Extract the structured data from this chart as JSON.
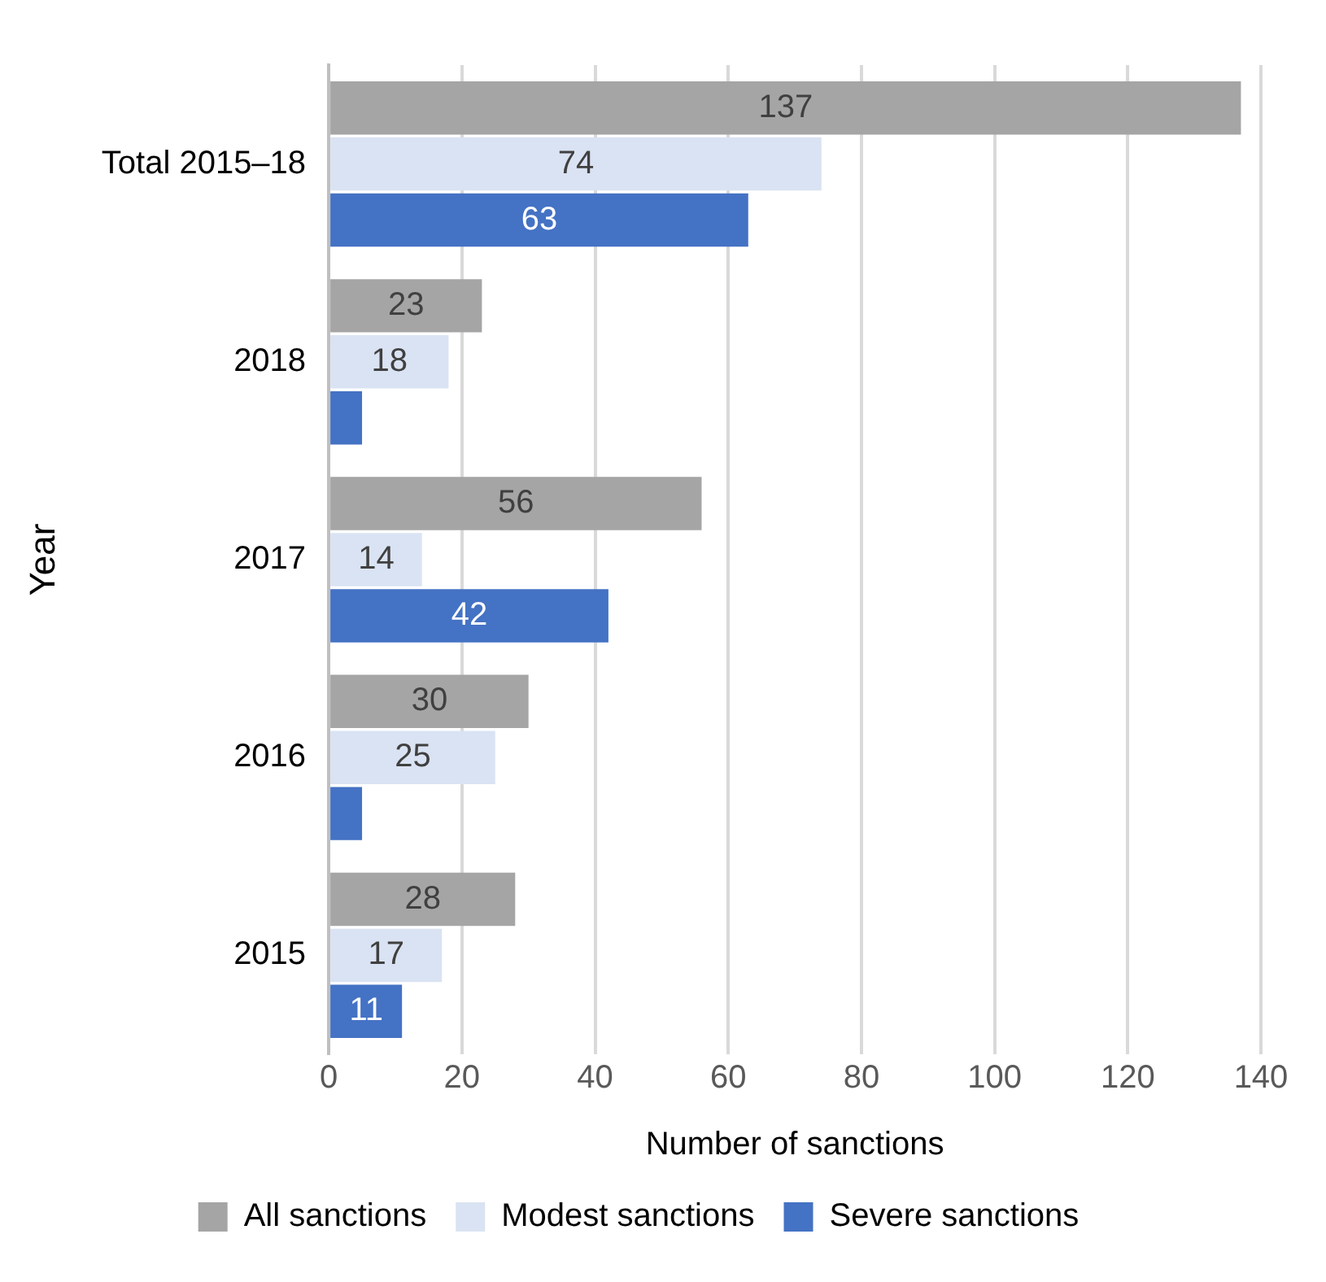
{
  "chart_data": {
    "type": "bar",
    "orientation": "horizontal",
    "xlabel": "Number of sanctions",
    "ylabel": "Year",
    "categories": [
      "Total 2015–18",
      "2018",
      "2017",
      "2016",
      "2015"
    ],
    "series": [
      {
        "name": "All sanctions",
        "color": "#a5a5a5",
        "values": [
          137,
          23,
          56,
          30,
          28
        ],
        "value_labels": [
          "137",
          "23",
          "56",
          "30",
          "28"
        ]
      },
      {
        "name": "Modest sanctions",
        "color": "#dae3f3",
        "values": [
          74,
          18,
          14,
          25,
          17
        ],
        "value_labels": [
          "74",
          "18",
          "14",
          "25",
          "17"
        ]
      },
      {
        "name": "Severe sanctions",
        "color": "#4472c4",
        "values": [
          63,
          5,
          42,
          5,
          11
        ],
        "value_labels": [
          "63",
          null,
          "42",
          null,
          "11"
        ]
      }
    ],
    "xlim": [
      0,
      140
    ],
    "xticks": [
      0,
      20,
      40,
      60,
      80,
      100,
      120,
      140
    ],
    "grid": "x",
    "legend": "bottom"
  }
}
